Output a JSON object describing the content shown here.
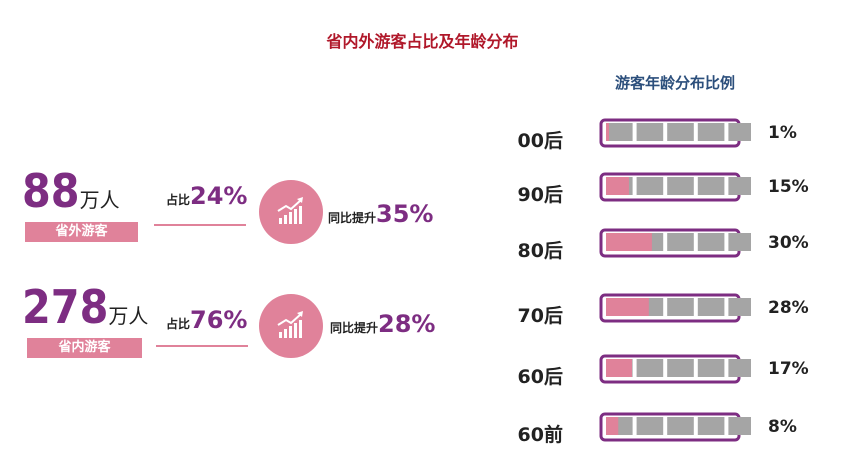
{
  "title": "省内外游客占比及年龄分布",
  "groups": [
    {
      "number": "88",
      "unit": "万人",
      "tag": "省外游客",
      "share_label": "占比",
      "share_value": "24%",
      "growth_label": "同比提升",
      "growth_value": "35%",
      "icon": "growth-chart-icon"
    },
    {
      "number": "278",
      "unit": "万人",
      "tag": "省内游客",
      "share_label": "占比",
      "share_value": "76%",
      "growth_label": "同比提升",
      "growth_value": "28%",
      "icon": "growth-chart-icon"
    }
  ],
  "colors": {
    "title": "#b0182a",
    "subtitle": "#2c4f7c",
    "accent_purple": "#7d2d82",
    "pink": "#e0829a",
    "gray": "#a5a5a5"
  },
  "chart_data": {
    "type": "bar",
    "title": "游客年龄分布比例",
    "categories": [
      "00后",
      "90后",
      "80后",
      "70后",
      "60后",
      "60前"
    ],
    "values": [
      1,
      15,
      30,
      28,
      17,
      8
    ],
    "value_labels": [
      "1%",
      "15%",
      "30%",
      "28%",
      "17%",
      "8%"
    ],
    "style": "battery-gauge"
  }
}
